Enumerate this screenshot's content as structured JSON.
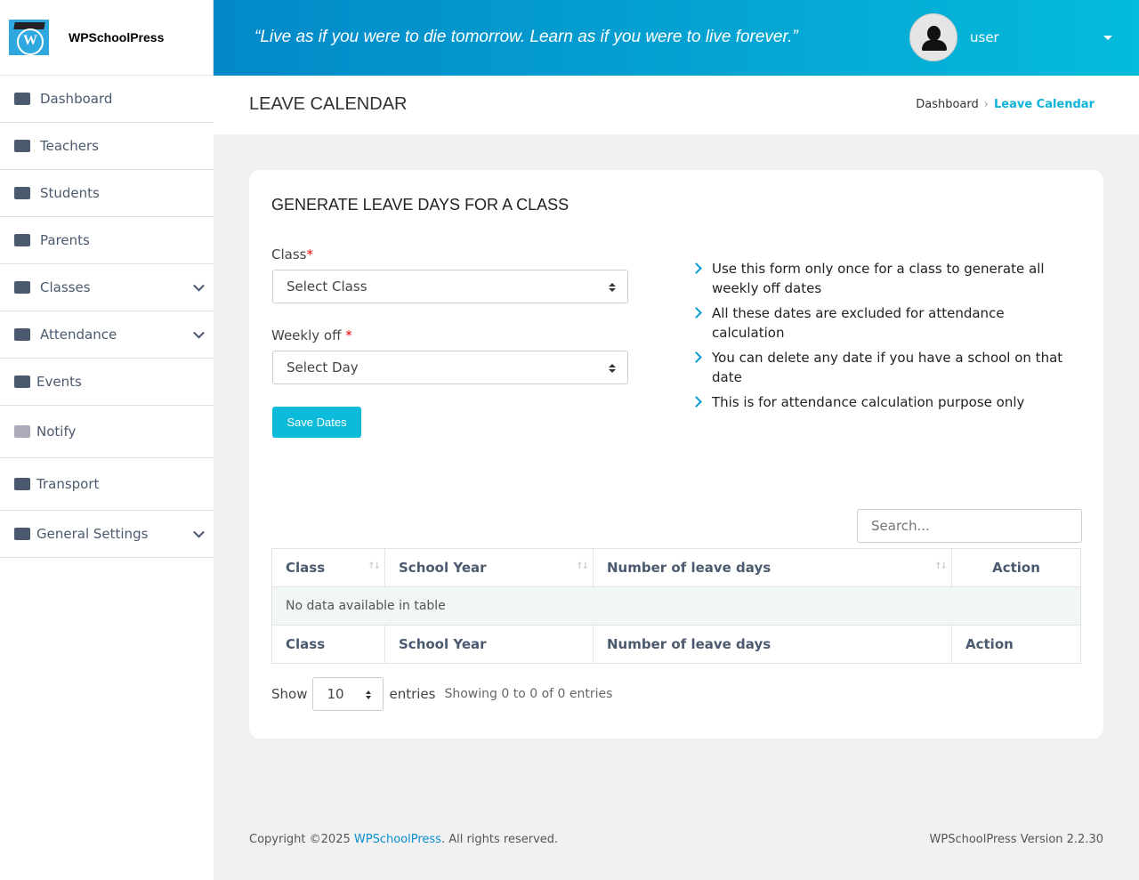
{
  "brand": {
    "name": "WPSchoolPress"
  },
  "sidebar": {
    "items": [
      {
        "label": "Dashboard",
        "icon": "dashboard-icon",
        "expandable": false
      },
      {
        "label": "Teachers",
        "icon": "teacher-icon",
        "expandable": false
      },
      {
        "label": "Students",
        "icon": "id-card-icon",
        "expandable": false
      },
      {
        "label": "Parents",
        "icon": "users-icon",
        "expandable": false
      },
      {
        "label": "Classes",
        "icon": "table-icon",
        "expandable": true
      },
      {
        "label": "Attendance",
        "icon": "tag-icon",
        "expandable": true
      },
      {
        "label": "Events",
        "icon": "calendar-icon",
        "expandable": false
      },
      {
        "label": "Notify",
        "icon": "megaphone-icon",
        "expandable": false
      },
      {
        "label": "Transport",
        "icon": "bus-icon",
        "expandable": false
      },
      {
        "label": "General Settings",
        "icon": "gear-icon",
        "expandable": true
      }
    ]
  },
  "topbar": {
    "quote": "“Live as if you were to die tomorrow. Learn as if you were to live forever.”",
    "user": "user"
  },
  "page": {
    "title": "LEAVE CALENDAR",
    "breadcrumb": [
      "Dashboard",
      "Leave Calendar"
    ]
  },
  "form": {
    "title": "GENERATE LEAVE DAYS FOR A CLASS",
    "class_label": "Class",
    "class_value": "Select Class",
    "weekly_label": "Weekly off",
    "weekly_value": "Select Day",
    "required": "*",
    "save": "Save Dates"
  },
  "tips": [
    "Use this form only once for a class to generate all weekly off dates",
    "All these dates are excluded for attendance calculation",
    "You can delete any date if you have a school on that date",
    "This is for attendance calculation purpose only"
  ],
  "table": {
    "search_placeholder": "Search...",
    "columns": [
      "Class",
      "School Year",
      "Number of leave days",
      "Action"
    ],
    "empty": "No data available in table",
    "show": "Show",
    "page_len": "10",
    "entries": "entries",
    "info": "Showing 0 to 0 of 0 entries"
  },
  "footer": {
    "copy": "Copyright ©2025 ",
    "link": "WPSchoolPress",
    "rest": ". All rights reserved.",
    "version": "WPSchoolPress Version 2.2.30"
  },
  "colors": {
    "accent": "#0bbbd9",
    "header_start": "#0388c8",
    "header_end": "#04bbdb"
  }
}
